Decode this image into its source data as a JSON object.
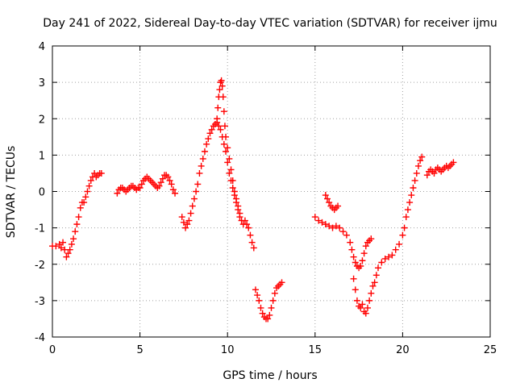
{
  "chart_data": {
    "type": "scatter",
    "title": "Day 241 of 2022, Sidereal Day-to-day VTEC variation (SDTVAR) for receiver ijmu",
    "xlabel": "GPS time / hours",
    "ylabel": "SDTVAR / TECUs",
    "xlim": [
      0,
      25
    ],
    "ylim": [
      -4,
      4
    ],
    "xticks": [
      0,
      5,
      10,
      15,
      20,
      25
    ],
    "yticks": [
      -4,
      -3,
      -2,
      -1,
      0,
      1,
      2,
      3,
      4
    ],
    "grid": true,
    "marker": "plus",
    "color": "#ff0000",
    "segments": [
      {
        "name": "segment-1",
        "points": [
          [
            0.0,
            -1.5
          ],
          [
            0.2,
            -1.5
          ],
          [
            0.4,
            -1.45
          ],
          [
            0.5,
            -1.55
          ],
          [
            0.6,
            -1.4
          ],
          [
            0.7,
            -1.6
          ],
          [
            0.8,
            -1.8
          ],
          [
            0.9,
            -1.7
          ],
          [
            1.0,
            -1.6
          ],
          [
            1.1,
            -1.45
          ],
          [
            1.2,
            -1.3
          ],
          [
            1.3,
            -1.1
          ],
          [
            1.4,
            -0.9
          ],
          [
            1.5,
            -0.7
          ],
          [
            1.6,
            -0.45
          ],
          [
            1.7,
            -0.3
          ],
          [
            1.8,
            -0.3
          ],
          [
            1.9,
            -0.15
          ],
          [
            2.0,
            0.0
          ],
          [
            2.1,
            0.15
          ],
          [
            2.2,
            0.3
          ],
          [
            2.3,
            0.4
          ],
          [
            2.4,
            0.5
          ],
          [
            2.5,
            0.4
          ],
          [
            2.6,
            0.45
          ],
          [
            2.7,
            0.5
          ],
          [
            2.8,
            0.5
          ]
        ]
      },
      {
        "name": "segment-2",
        "points": [
          [
            3.7,
            -0.05
          ],
          [
            3.8,
            0.05
          ],
          [
            3.9,
            0.1
          ],
          [
            4.0,
            0.1
          ],
          [
            4.1,
            0.05
          ],
          [
            4.2,
            0.0
          ],
          [
            4.3,
            0.05
          ],
          [
            4.4,
            0.1
          ],
          [
            4.5,
            0.15
          ],
          [
            4.6,
            0.15
          ],
          [
            4.7,
            0.1
          ],
          [
            4.8,
            0.05
          ],
          [
            4.9,
            0.1
          ],
          [
            5.0,
            0.1
          ],
          [
            5.1,
            0.2
          ],
          [
            5.2,
            0.3
          ],
          [
            5.3,
            0.35
          ],
          [
            5.4,
            0.4
          ],
          [
            5.5,
            0.35
          ],
          [
            5.6,
            0.3
          ],
          [
            5.7,
            0.25
          ],
          [
            5.8,
            0.2
          ],
          [
            5.9,
            0.15
          ],
          [
            6.0,
            0.1
          ],
          [
            6.1,
            0.15
          ],
          [
            6.2,
            0.25
          ],
          [
            6.3,
            0.35
          ],
          [
            6.4,
            0.45
          ],
          [
            6.5,
            0.45
          ],
          [
            6.6,
            0.4
          ],
          [
            6.7,
            0.3
          ],
          [
            6.8,
            0.2
          ],
          [
            6.9,
            0.05
          ],
          [
            7.0,
            -0.05
          ]
        ]
      },
      {
        "name": "segment-3",
        "points": [
          [
            7.4,
            -0.7
          ],
          [
            7.5,
            -0.85
          ],
          [
            7.6,
            -1.0
          ],
          [
            7.7,
            -0.9
          ],
          [
            7.8,
            -0.8
          ],
          [
            7.9,
            -0.6
          ],
          [
            8.0,
            -0.4
          ],
          [
            8.1,
            -0.2
          ],
          [
            8.2,
            0.0
          ],
          [
            8.3,
            0.2
          ],
          [
            8.4,
            0.5
          ],
          [
            8.5,
            0.7
          ],
          [
            8.6,
            0.9
          ],
          [
            8.7,
            1.1
          ],
          [
            8.8,
            1.3
          ],
          [
            8.9,
            1.45
          ],
          [
            9.0,
            1.6
          ],
          [
            9.1,
            1.7
          ],
          [
            9.2,
            1.8
          ],
          [
            9.3,
            1.85
          ],
          [
            9.4,
            1.9
          ],
          [
            9.5,
            1.8
          ],
          [
            9.6,
            1.7
          ],
          [
            9.7,
            1.5
          ],
          [
            9.8,
            1.3
          ],
          [
            9.9,
            1.1
          ],
          [
            10.0,
            0.8
          ],
          [
            10.1,
            0.5
          ],
          [
            10.2,
            0.3
          ],
          [
            10.3,
            0.1
          ],
          [
            10.4,
            -0.1
          ],
          [
            10.5,
            -0.3
          ],
          [
            10.6,
            -0.5
          ],
          [
            10.7,
            -0.6
          ],
          [
            10.8,
            -0.8
          ],
          [
            10.9,
            -0.9
          ],
          [
            11.0,
            -0.8
          ],
          [
            11.1,
            -0.9
          ],
          [
            11.2,
            -1.0
          ],
          [
            11.3,
            -1.2
          ],
          [
            11.4,
            -1.4
          ],
          [
            11.5,
            -1.55
          ]
        ]
      },
      {
        "name": "segment-spike",
        "points": [
          [
            9.4,
            2.0
          ],
          [
            9.45,
            2.3
          ],
          [
            9.5,
            2.6
          ],
          [
            9.55,
            2.8
          ],
          [
            9.6,
            3.0
          ],
          [
            9.65,
            3.05
          ],
          [
            9.7,
            2.9
          ],
          [
            9.75,
            2.6
          ],
          [
            9.8,
            2.2
          ],
          [
            9.85,
            1.8
          ],
          [
            9.9,
            1.5
          ],
          [
            10.0,
            1.2
          ],
          [
            10.1,
            0.9
          ],
          [
            10.2,
            0.6
          ],
          [
            10.3,
            0.3
          ],
          [
            10.4,
            0.0
          ],
          [
            10.5,
            -0.2
          ],
          [
            10.6,
            -0.4
          ],
          [
            10.7,
            -0.7
          ]
        ]
      },
      {
        "name": "segment-4",
        "points": [
          [
            11.6,
            -2.7
          ],
          [
            11.7,
            -2.85
          ],
          [
            11.8,
            -3.0
          ],
          [
            11.9,
            -3.2
          ],
          [
            12.0,
            -3.35
          ],
          [
            12.1,
            -3.45
          ],
          [
            12.2,
            -3.5
          ],
          [
            12.3,
            -3.5
          ],
          [
            12.4,
            -3.4
          ],
          [
            12.5,
            -3.2
          ],
          [
            12.6,
            -3.0
          ],
          [
            12.7,
            -2.8
          ],
          [
            12.8,
            -2.65
          ],
          [
            12.9,
            -2.6
          ],
          [
            13.0,
            -2.55
          ],
          [
            13.1,
            -2.5
          ]
        ]
      },
      {
        "name": "segment-5",
        "points": [
          [
            15.0,
            -0.7
          ],
          [
            15.2,
            -0.8
          ],
          [
            15.4,
            -0.85
          ],
          [
            15.6,
            -0.9
          ],
          [
            15.8,
            -0.95
          ],
          [
            16.0,
            -1.0
          ],
          [
            16.2,
            -0.95
          ],
          [
            16.4,
            -1.0
          ],
          [
            16.6,
            -1.1
          ],
          [
            16.8,
            -1.2
          ],
          [
            17.0,
            -1.4
          ],
          [
            17.1,
            -1.6
          ],
          [
            17.2,
            -1.8
          ],
          [
            17.3,
            -1.95
          ],
          [
            17.4,
            -2.05
          ],
          [
            17.5,
            -2.1
          ],
          [
            17.6,
            -2.05
          ],
          [
            17.7,
            -1.9
          ],
          [
            17.8,
            -1.7
          ],
          [
            17.9,
            -1.5
          ],
          [
            18.0,
            -1.4
          ],
          [
            18.1,
            -1.35
          ],
          [
            18.2,
            -1.3
          ]
        ]
      },
      {
        "name": "segment-6",
        "points": [
          [
            15.6,
            -0.1
          ],
          [
            15.7,
            -0.2
          ],
          [
            15.8,
            -0.3
          ],
          [
            15.9,
            -0.4
          ],
          [
            16.0,
            -0.45
          ],
          [
            16.1,
            -0.5
          ],
          [
            16.2,
            -0.45
          ],
          [
            16.3,
            -0.4
          ]
        ]
      },
      {
        "name": "segment-7",
        "points": [
          [
            17.2,
            -2.4
          ],
          [
            17.3,
            -2.7
          ],
          [
            17.4,
            -3.0
          ],
          [
            17.5,
            -3.15
          ],
          [
            17.6,
            -3.2
          ],
          [
            17.7,
            -3.1
          ],
          [
            17.8,
            -3.3
          ],
          [
            17.9,
            -3.35
          ],
          [
            18.0,
            -3.2
          ],
          [
            18.1,
            -3.0
          ],
          [
            18.2,
            -2.8
          ],
          [
            18.3,
            -2.6
          ],
          [
            18.4,
            -2.5
          ],
          [
            18.5,
            -2.3
          ],
          [
            18.6,
            -2.1
          ],
          [
            18.8,
            -1.95
          ],
          [
            19.0,
            -1.85
          ],
          [
            19.2,
            -1.8
          ],
          [
            19.4,
            -1.75
          ],
          [
            19.6,
            -1.6
          ],
          [
            19.8,
            -1.45
          ],
          [
            20.0,
            -1.2
          ],
          [
            20.1,
            -1.0
          ],
          [
            20.2,
            -0.7
          ],
          [
            20.3,
            -0.5
          ],
          [
            20.4,
            -0.3
          ],
          [
            20.5,
            -0.1
          ],
          [
            20.6,
            0.1
          ],
          [
            20.7,
            0.3
          ],
          [
            20.8,
            0.5
          ],
          [
            20.9,
            0.7
          ],
          [
            21.0,
            0.85
          ],
          [
            21.1,
            0.95
          ]
        ]
      },
      {
        "name": "segment-8",
        "points": [
          [
            21.4,
            0.45
          ],
          [
            21.5,
            0.55
          ],
          [
            21.6,
            0.6
          ],
          [
            21.7,
            0.55
          ],
          [
            21.8,
            0.5
          ],
          [
            21.9,
            0.6
          ],
          [
            22.0,
            0.65
          ],
          [
            22.1,
            0.6
          ],
          [
            22.2,
            0.55
          ],
          [
            22.3,
            0.6
          ],
          [
            22.4,
            0.65
          ],
          [
            22.5,
            0.7
          ],
          [
            22.6,
            0.65
          ],
          [
            22.7,
            0.7
          ],
          [
            22.8,
            0.75
          ],
          [
            22.9,
            0.8
          ]
        ]
      }
    ]
  }
}
